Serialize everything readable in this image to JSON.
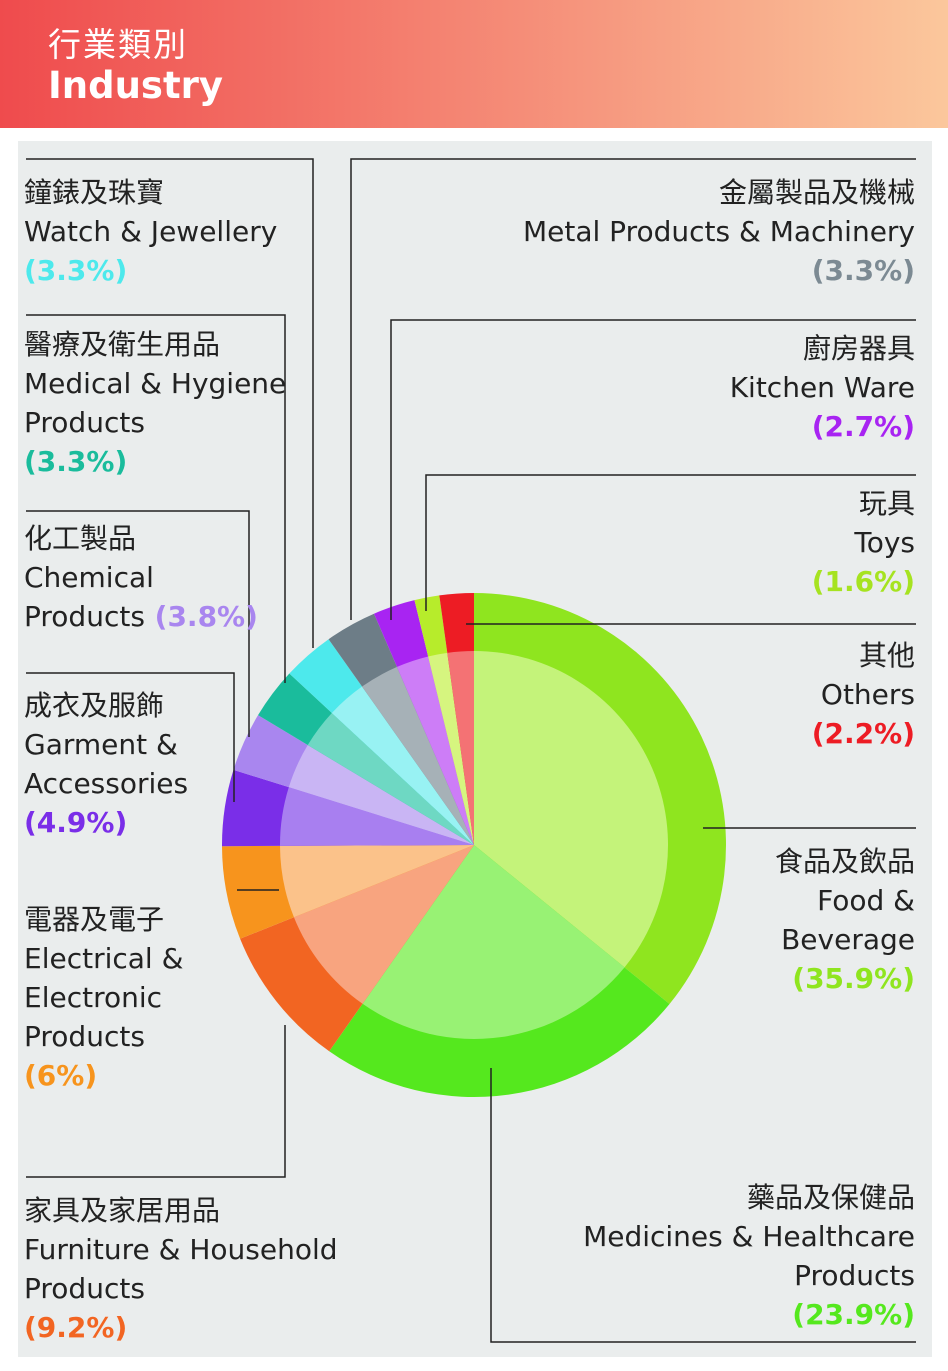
{
  "header": {
    "title_zh": "行業類別",
    "title_en": "Industry"
  },
  "colors": {
    "header_start": "#ef4b4d",
    "header_end": "#fbc79c",
    "panel_bg": "#eaeded",
    "leader_line": "#222222"
  },
  "chart_data": {
    "type": "pie",
    "start": "12 o'clock, clockwise",
    "slices": [
      {
        "zh": "食品及飲品",
        "en_lines": [
          "Food &",
          "Beverage"
        ],
        "value": 35.9,
        "pct_label": "(35.9%)",
        "outer": "#8fe51f",
        "inner": "#c4f37a",
        "pct_color": "#8fe51f"
      },
      {
        "zh": "藥品及保健品",
        "en_lines": [
          "Medicines & Healthcare",
          "Products"
        ],
        "value": 23.9,
        "pct_label": "(23.9%)",
        "outer": "#55e81e",
        "inner": "#98f274",
        "pct_color": "#55e81e"
      },
      {
        "zh": "家具及家居用品",
        "en_lines": [
          "Furniture & Household",
          "Products"
        ],
        "value": 9.2,
        "pct_label": "(9.2%)",
        "outer": "#f26522",
        "inner": "#f8a47f",
        "pct_color": "#f26522"
      },
      {
        "zh": "電器及電子",
        "en_lines": [
          "Electrical &",
          "Electronic",
          "Products"
        ],
        "value": 6,
        "pct_label": "(6%)",
        "outer": "#f7941d",
        "inner": "#fbc28a",
        "pct_color": "#f7941d"
      },
      {
        "zh": "成衣及服飾",
        "en_lines": [
          "Garment &",
          "Accessories"
        ],
        "value": 4.9,
        "pct_label": "(4.9%)",
        "outer": "#7a2ee8",
        "inner": "#a87ff0",
        "pct_color": "#7a2ee8"
      },
      {
        "zh": "化工製品",
        "en_lines": [
          "Chemical",
          "Products"
        ],
        "value": 3.8,
        "pct_label": "(3.8%)",
        "outer": "#a986ef",
        "inner": "#c9b5f4",
        "pct_color": "#a986ef"
      },
      {
        "zh": "醫療及衛生用品",
        "en_lines": [
          "Medical & Hygiene",
          "Products"
        ],
        "value": 3.3,
        "pct_label": "(3.3%)",
        "outer": "#1abc9c",
        "inner": "#6ed8c3",
        "pct_color": "#1abc9c"
      },
      {
        "zh": "鐘錶及珠寶",
        "en_lines": [
          "Watch & Jewellery"
        ],
        "value": 3.3,
        "pct_label": "(3.3%)",
        "outer": "#4de9ec",
        "inner": "#98f2f3",
        "pct_color": "#4de9ec"
      },
      {
        "zh": "金屬製品及機械",
        "en_lines": [
          "Metal Products & Machinery"
        ],
        "value": 3.3,
        "pct_label": "(3.3%)",
        "outer": "#6d7d87",
        "inner": "#a6b1b7",
        "pct_color": "#7c8a93"
      },
      {
        "zh": "廚房器具",
        "en_lines": [
          "Kitchen Ware"
        ],
        "value": 2.7,
        "pct_label": "(2.7%)",
        "outer": "#a824f2",
        "inner": "#cd7df7",
        "pct_color": "#a824f2"
      },
      {
        "zh": "玩具",
        "en_lines": [
          "Toys"
        ],
        "value": 1.6,
        "pct_label": "(1.6%)",
        "outer": "#b7ec2b",
        "inner": "#d6f57f",
        "pct_color": "#a6e320"
      },
      {
        "zh": "其他",
        "en_lines": [
          "Others"
        ],
        "value": 2.2,
        "pct_label": "(2.2%)",
        "outer": "#ed1c24",
        "inner": "#f47274",
        "pct_color": "#ed1c24"
      }
    ]
  }
}
